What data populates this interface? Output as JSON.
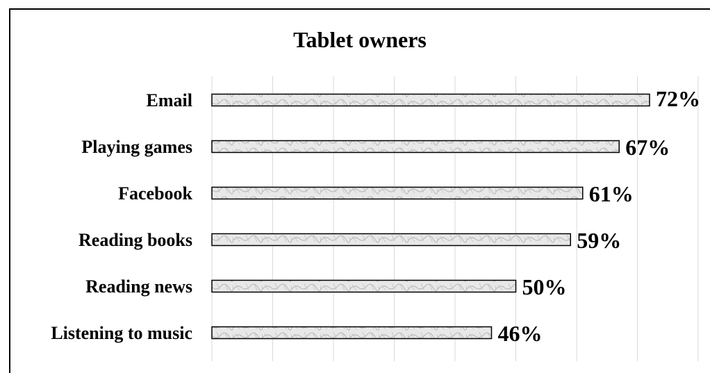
{
  "chart_data": {
    "type": "bar",
    "orientation": "horizontal",
    "title": "Tablet owners",
    "categories": [
      "Email",
      "Playing games",
      "Facebook",
      "Reading books",
      "Reading news",
      "Listening to music"
    ],
    "values": [
      72,
      67,
      61,
      59,
      50,
      46
    ],
    "value_labels": [
      "72%",
      "67%",
      "61%",
      "59%",
      "50%",
      "46%"
    ],
    "xlim": [
      0,
      80
    ],
    "grid": true,
    "legend": "none"
  },
  "colors": {
    "bar_fill": "#e6e6e6",
    "bar_texture": "#bdbdbd",
    "bar_stroke": "#000000",
    "grid": "#d9d9d9",
    "text": "#000000"
  }
}
